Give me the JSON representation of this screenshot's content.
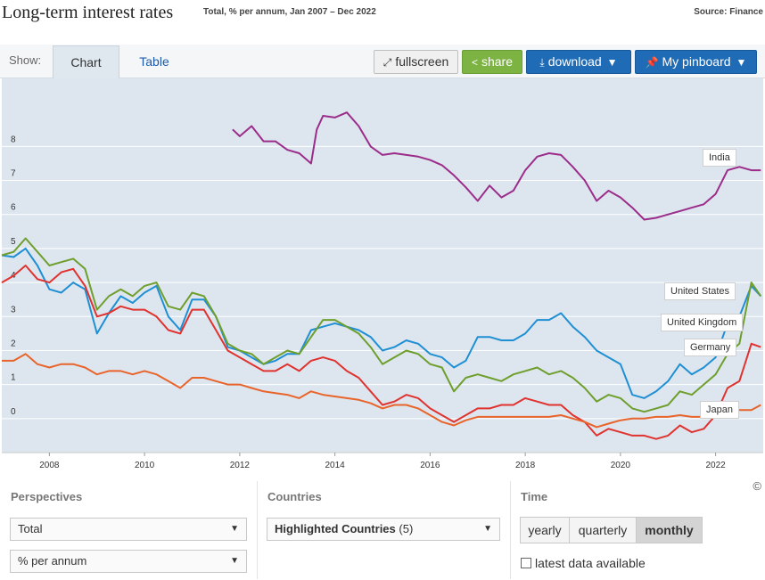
{
  "header": {
    "title": "Long-term interest rates",
    "subtitle": "Total, % per annum, Jan 2007 – Dec 2022",
    "source": "Source: Finance"
  },
  "toolbar": {
    "show_label": "Show:",
    "tabs": [
      "Chart",
      "Table"
    ],
    "active_tab": "Chart",
    "fullscreen": "fullscreen",
    "share": "share",
    "download": "download",
    "pinboard": "My pinboard",
    "share_color": "#7cb342",
    "action_color": "#1f6bb5"
  },
  "controls": {
    "perspectives": {
      "label": "Perspectives",
      "measure": "Total",
      "unit": "% per annum"
    },
    "countries": {
      "label": "Countries",
      "selected": "Highlighted Countries",
      "count": "(5)"
    },
    "time": {
      "label": "Time",
      "options": [
        "yearly",
        "quarterly",
        "monthly"
      ],
      "active": "monthly",
      "latest_label": "latest data available"
    },
    "copyright": "©"
  },
  "chart_data": {
    "type": "line",
    "title": "Long-term interest rates",
    "xlim": [
      2007,
      2023
    ],
    "ylim": [
      -1,
      10
    ],
    "x_ticks": [
      2008,
      2010,
      2012,
      2014,
      2016,
      2018,
      2020,
      2022
    ],
    "y_ticks": [
      0,
      1,
      2,
      3,
      4,
      5,
      6,
      7,
      8
    ],
    "grid": true,
    "background": "#dde6ef",
    "series": [
      {
        "name": "India",
        "color": "#9b2c8a",
        "x": [
          2011.85,
          2012.0,
          2012.25,
          2012.5,
          2012.75,
          2013.0,
          2013.25,
          2013.5,
          2013.62,
          2013.75,
          2014.0,
          2014.25,
          2014.5,
          2014.75,
          2015.0,
          2015.25,
          2015.5,
          2015.75,
          2016.0,
          2016.25,
          2016.5,
          2016.75,
          2017.0,
          2017.25,
          2017.5,
          2017.75,
          2018.0,
          2018.25,
          2018.5,
          2018.75,
          2019.0,
          2019.25,
          2019.5,
          2019.75,
          2020.0,
          2020.25,
          2020.5,
          2020.75,
          2021.0,
          2021.25,
          2021.5,
          2021.75,
          2022.0,
          2022.25,
          2022.5,
          2022.75,
          2022.95
        ],
        "y": [
          8.5,
          8.3,
          8.6,
          8.15,
          8.15,
          7.9,
          7.8,
          7.5,
          8.5,
          8.9,
          8.85,
          9.0,
          8.6,
          8.0,
          7.75,
          7.8,
          7.75,
          7.7,
          7.6,
          7.45,
          7.15,
          6.8,
          6.4,
          6.85,
          6.5,
          6.7,
          7.3,
          7.7,
          7.8,
          7.75,
          7.4,
          7.0,
          6.4,
          6.7,
          6.5,
          6.2,
          5.85,
          5.9,
          6.0,
          6.1,
          6.2,
          6.3,
          6.6,
          7.3,
          7.4,
          7.3,
          7.3
        ]
      },
      {
        "name": "United States",
        "color": "#1f8fd4",
        "x": [
          2007.0,
          2007.25,
          2007.5,
          2007.75,
          2008.0,
          2008.25,
          2008.5,
          2008.75,
          2009.0,
          2009.25,
          2009.5,
          2009.75,
          2010.0,
          2010.25,
          2010.5,
          2010.75,
          2011.0,
          2011.25,
          2011.5,
          2011.75,
          2012.0,
          2012.25,
          2012.5,
          2012.75,
          2013.0,
          2013.25,
          2013.5,
          2013.75,
          2014.0,
          2014.25,
          2014.5,
          2014.75,
          2015.0,
          2015.25,
          2015.5,
          2015.75,
          2016.0,
          2016.25,
          2016.5,
          2016.75,
          2017.0,
          2017.25,
          2017.5,
          2017.75,
          2018.0,
          2018.25,
          2018.5,
          2018.75,
          2019.0,
          2019.25,
          2019.5,
          2019.75,
          2020.0,
          2020.25,
          2020.5,
          2020.75,
          2021.0,
          2021.25,
          2021.5,
          2021.75,
          2022.0,
          2022.25,
          2022.5,
          2022.75,
          2022.95
        ],
        "y": [
          4.8,
          4.75,
          5.0,
          4.5,
          3.8,
          3.7,
          4.0,
          3.8,
          2.5,
          3.1,
          3.6,
          3.4,
          3.7,
          3.9,
          3.0,
          2.6,
          3.5,
          3.5,
          3.0,
          2.1,
          2.0,
          1.8,
          1.6,
          1.7,
          1.9,
          1.9,
          2.6,
          2.7,
          2.8,
          2.7,
          2.6,
          2.4,
          2.0,
          2.1,
          2.3,
          2.2,
          1.9,
          1.8,
          1.5,
          1.7,
          2.4,
          2.4,
          2.3,
          2.3,
          2.5,
          2.9,
          2.9,
          3.1,
          2.7,
          2.4,
          2.0,
          1.8,
          1.6,
          0.7,
          0.6,
          0.8,
          1.1,
          1.6,
          1.3,
          1.5,
          1.8,
          2.8,
          3.0,
          3.9,
          3.6
        ]
      },
      {
        "name": "United Kingdom",
        "color": "#6e9f2c",
        "x": [
          2007.0,
          2007.25,
          2007.5,
          2007.75,
          2008.0,
          2008.25,
          2008.5,
          2008.75,
          2009.0,
          2009.25,
          2009.5,
          2009.75,
          2010.0,
          2010.25,
          2010.5,
          2010.75,
          2011.0,
          2011.25,
          2011.5,
          2011.75,
          2012.0,
          2012.25,
          2012.5,
          2012.75,
          2013.0,
          2013.25,
          2013.5,
          2013.75,
          2014.0,
          2014.25,
          2014.5,
          2014.75,
          2015.0,
          2015.25,
          2015.5,
          2015.75,
          2016.0,
          2016.25,
          2016.5,
          2016.75,
          2017.0,
          2017.25,
          2017.5,
          2017.75,
          2018.0,
          2018.25,
          2018.5,
          2018.75,
          2019.0,
          2019.25,
          2019.5,
          2019.75,
          2020.0,
          2020.25,
          2020.5,
          2020.75,
          2021.0,
          2021.25,
          2021.5,
          2021.75,
          2022.0,
          2022.25,
          2022.5,
          2022.75,
          2022.95
        ],
        "y": [
          4.8,
          4.9,
          5.3,
          4.9,
          4.5,
          4.6,
          4.7,
          4.4,
          3.2,
          3.6,
          3.8,
          3.6,
          3.9,
          4.0,
          3.3,
          3.2,
          3.7,
          3.6,
          3.0,
          2.2,
          2.0,
          1.9,
          1.6,
          1.8,
          2.0,
          1.9,
          2.4,
          2.9,
          2.9,
          2.7,
          2.5,
          2.1,
          1.6,
          1.8,
          2.0,
          1.9,
          1.6,
          1.5,
          0.8,
          1.2,
          1.3,
          1.2,
          1.1,
          1.3,
          1.4,
          1.5,
          1.3,
          1.4,
          1.2,
          0.9,
          0.5,
          0.7,
          0.6,
          0.3,
          0.2,
          0.3,
          0.4,
          0.8,
          0.7,
          1.0,
          1.3,
          1.9,
          2.2,
          4.0,
          3.6
        ]
      },
      {
        "name": "Germany",
        "color": "#e0322e",
        "x": [
          2007.0,
          2007.25,
          2007.5,
          2007.75,
          2008.0,
          2008.25,
          2008.5,
          2008.75,
          2009.0,
          2009.25,
          2009.5,
          2009.75,
          2010.0,
          2010.25,
          2010.5,
          2010.75,
          2011.0,
          2011.25,
          2011.5,
          2011.75,
          2012.0,
          2012.25,
          2012.5,
          2012.75,
          2013.0,
          2013.25,
          2013.5,
          2013.75,
          2014.0,
          2014.25,
          2014.5,
          2014.75,
          2015.0,
          2015.25,
          2015.5,
          2015.75,
          2016.0,
          2016.25,
          2016.5,
          2016.75,
          2017.0,
          2017.25,
          2017.5,
          2017.75,
          2018.0,
          2018.25,
          2018.5,
          2018.75,
          2019.0,
          2019.25,
          2019.5,
          2019.75,
          2020.0,
          2020.25,
          2020.5,
          2020.75,
          2021.0,
          2021.25,
          2021.5,
          2021.75,
          2022.0,
          2022.25,
          2022.5,
          2022.75,
          2022.95
        ],
        "y": [
          4.0,
          4.2,
          4.5,
          4.1,
          4.0,
          4.3,
          4.4,
          3.9,
          3.0,
          3.1,
          3.3,
          3.2,
          3.2,
          3.0,
          2.6,
          2.5,
          3.2,
          3.2,
          2.6,
          2.0,
          1.8,
          1.6,
          1.4,
          1.4,
          1.6,
          1.4,
          1.7,
          1.8,
          1.7,
          1.4,
          1.2,
          0.8,
          0.4,
          0.5,
          0.7,
          0.6,
          0.3,
          0.1,
          -0.1,
          0.1,
          0.3,
          0.3,
          0.4,
          0.4,
          0.6,
          0.5,
          0.4,
          0.4,
          0.1,
          -0.1,
          -0.5,
          -0.3,
          -0.4,
          -0.5,
          -0.5,
          -0.6,
          -0.5,
          -0.2,
          -0.4,
          -0.3,
          0.1,
          0.9,
          1.1,
          2.2,
          2.1
        ]
      },
      {
        "name": "Japan",
        "color": "#e8642a",
        "x": [
          2007.0,
          2007.25,
          2007.5,
          2007.75,
          2008.0,
          2008.25,
          2008.5,
          2008.75,
          2009.0,
          2009.25,
          2009.5,
          2009.75,
          2010.0,
          2010.25,
          2010.5,
          2010.75,
          2011.0,
          2011.25,
          2011.5,
          2011.75,
          2012.0,
          2012.25,
          2012.5,
          2012.75,
          2013.0,
          2013.25,
          2013.5,
          2013.75,
          2014.0,
          2014.25,
          2014.5,
          2014.75,
          2015.0,
          2015.25,
          2015.5,
          2015.75,
          2016.0,
          2016.25,
          2016.5,
          2016.75,
          2017.0,
          2017.25,
          2017.5,
          2017.75,
          2018.0,
          2018.25,
          2018.5,
          2018.75,
          2019.0,
          2019.25,
          2019.5,
          2019.75,
          2020.0,
          2020.25,
          2020.5,
          2020.75,
          2021.0,
          2021.25,
          2021.5,
          2021.75,
          2022.0,
          2022.25,
          2022.5,
          2022.75,
          2022.95
        ],
        "y": [
          1.7,
          1.7,
          1.9,
          1.6,
          1.5,
          1.6,
          1.6,
          1.5,
          1.3,
          1.4,
          1.4,
          1.3,
          1.4,
          1.3,
          1.1,
          0.9,
          1.2,
          1.2,
          1.1,
          1.0,
          1.0,
          0.9,
          0.8,
          0.75,
          0.7,
          0.6,
          0.8,
          0.7,
          0.65,
          0.6,
          0.55,
          0.45,
          0.3,
          0.4,
          0.4,
          0.3,
          0.1,
          -0.1,
          -0.2,
          -0.05,
          0.05,
          0.05,
          0.05,
          0.05,
          0.05,
          0.05,
          0.05,
          0.1,
          0.0,
          -0.1,
          -0.25,
          -0.15,
          -0.05,
          0.0,
          0.0,
          0.05,
          0.05,
          0.1,
          0.05,
          0.05,
          0.15,
          0.25,
          0.25,
          0.25,
          0.4
        ]
      }
    ],
    "labels": [
      "India",
      "United States",
      "United Kingdom",
      "Germany",
      "Japan"
    ]
  }
}
